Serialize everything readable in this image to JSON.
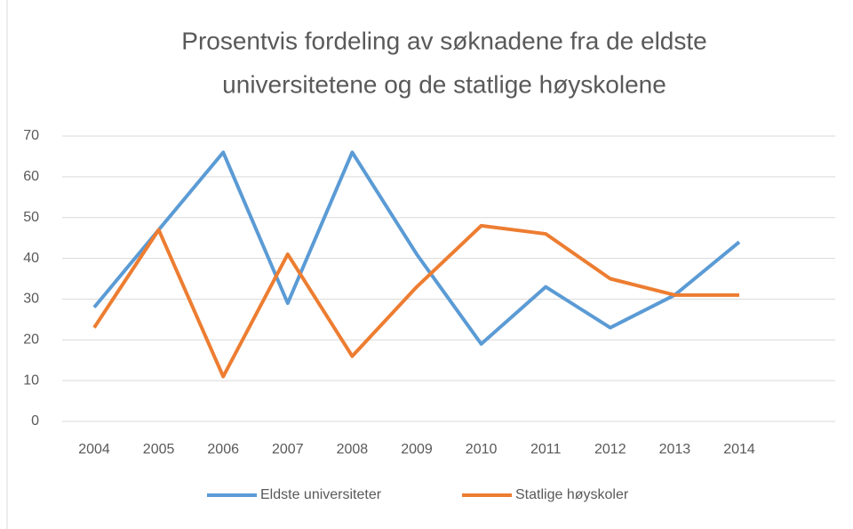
{
  "chart_data": {
    "type": "line",
    "title": [
      "Prosentvis fordeling av søknadene fra de eldste",
      "universitetene og de statlige høyskolene"
    ],
    "categories": [
      "2004",
      "2005",
      "2006",
      "2007",
      "2008",
      "2009",
      "2010",
      "2011",
      "2012",
      "2013",
      "2014"
    ],
    "series": [
      {
        "name": "Eldste universiteter",
        "color": "#5b9bd5",
        "values": [
          28,
          47,
          66,
          29,
          66,
          41,
          19,
          33,
          23,
          31,
          44
        ]
      },
      {
        "name": "Statlige høyskoler",
        "color": "#ed7d31",
        "values": [
          23,
          47,
          11,
          41,
          16,
          33,
          48,
          46,
          35,
          31,
          31
        ]
      }
    ],
    "ylim": [
      0,
      70
    ],
    "yticks": [
      0,
      10,
      20,
      30,
      40,
      50,
      60,
      70
    ],
    "grid": true,
    "legend": "bottom"
  }
}
